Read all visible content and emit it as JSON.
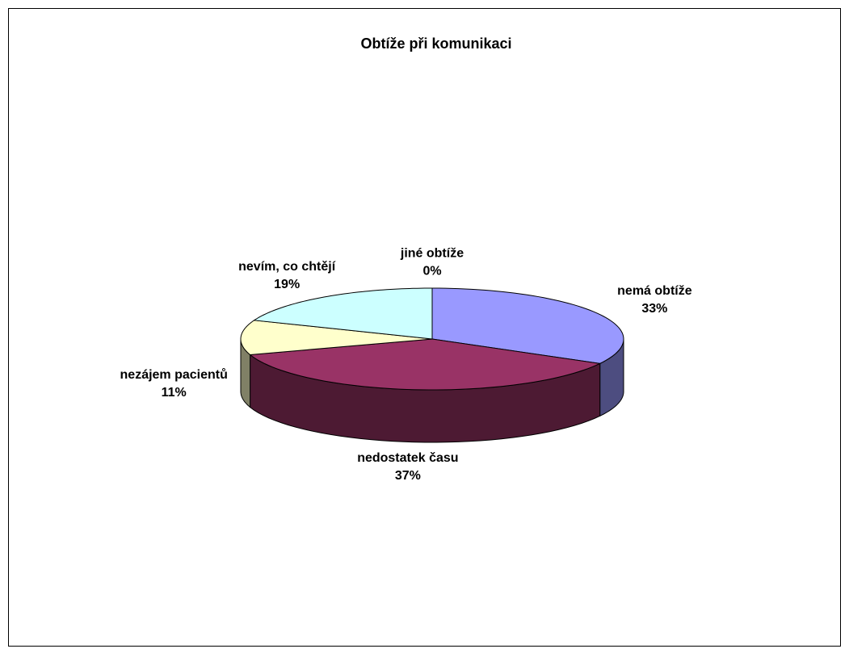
{
  "chart_data": {
    "type": "pie3d",
    "title": "Obtíže při komunikaci",
    "categories": [
      "nemá obtíže",
      "nedostatek času",
      "nezájem pacientů",
      "nevím, co chtějí",
      "jiné obtíže"
    ],
    "values": [
      33,
      37,
      11,
      19,
      0
    ],
    "value_labels": [
      "33%",
      "37%",
      "11%",
      "19%",
      "0%"
    ],
    "colors": [
      "#9999ff",
      "#993366",
      "#ffffcc",
      "#ccffff",
      "#660066"
    ]
  }
}
